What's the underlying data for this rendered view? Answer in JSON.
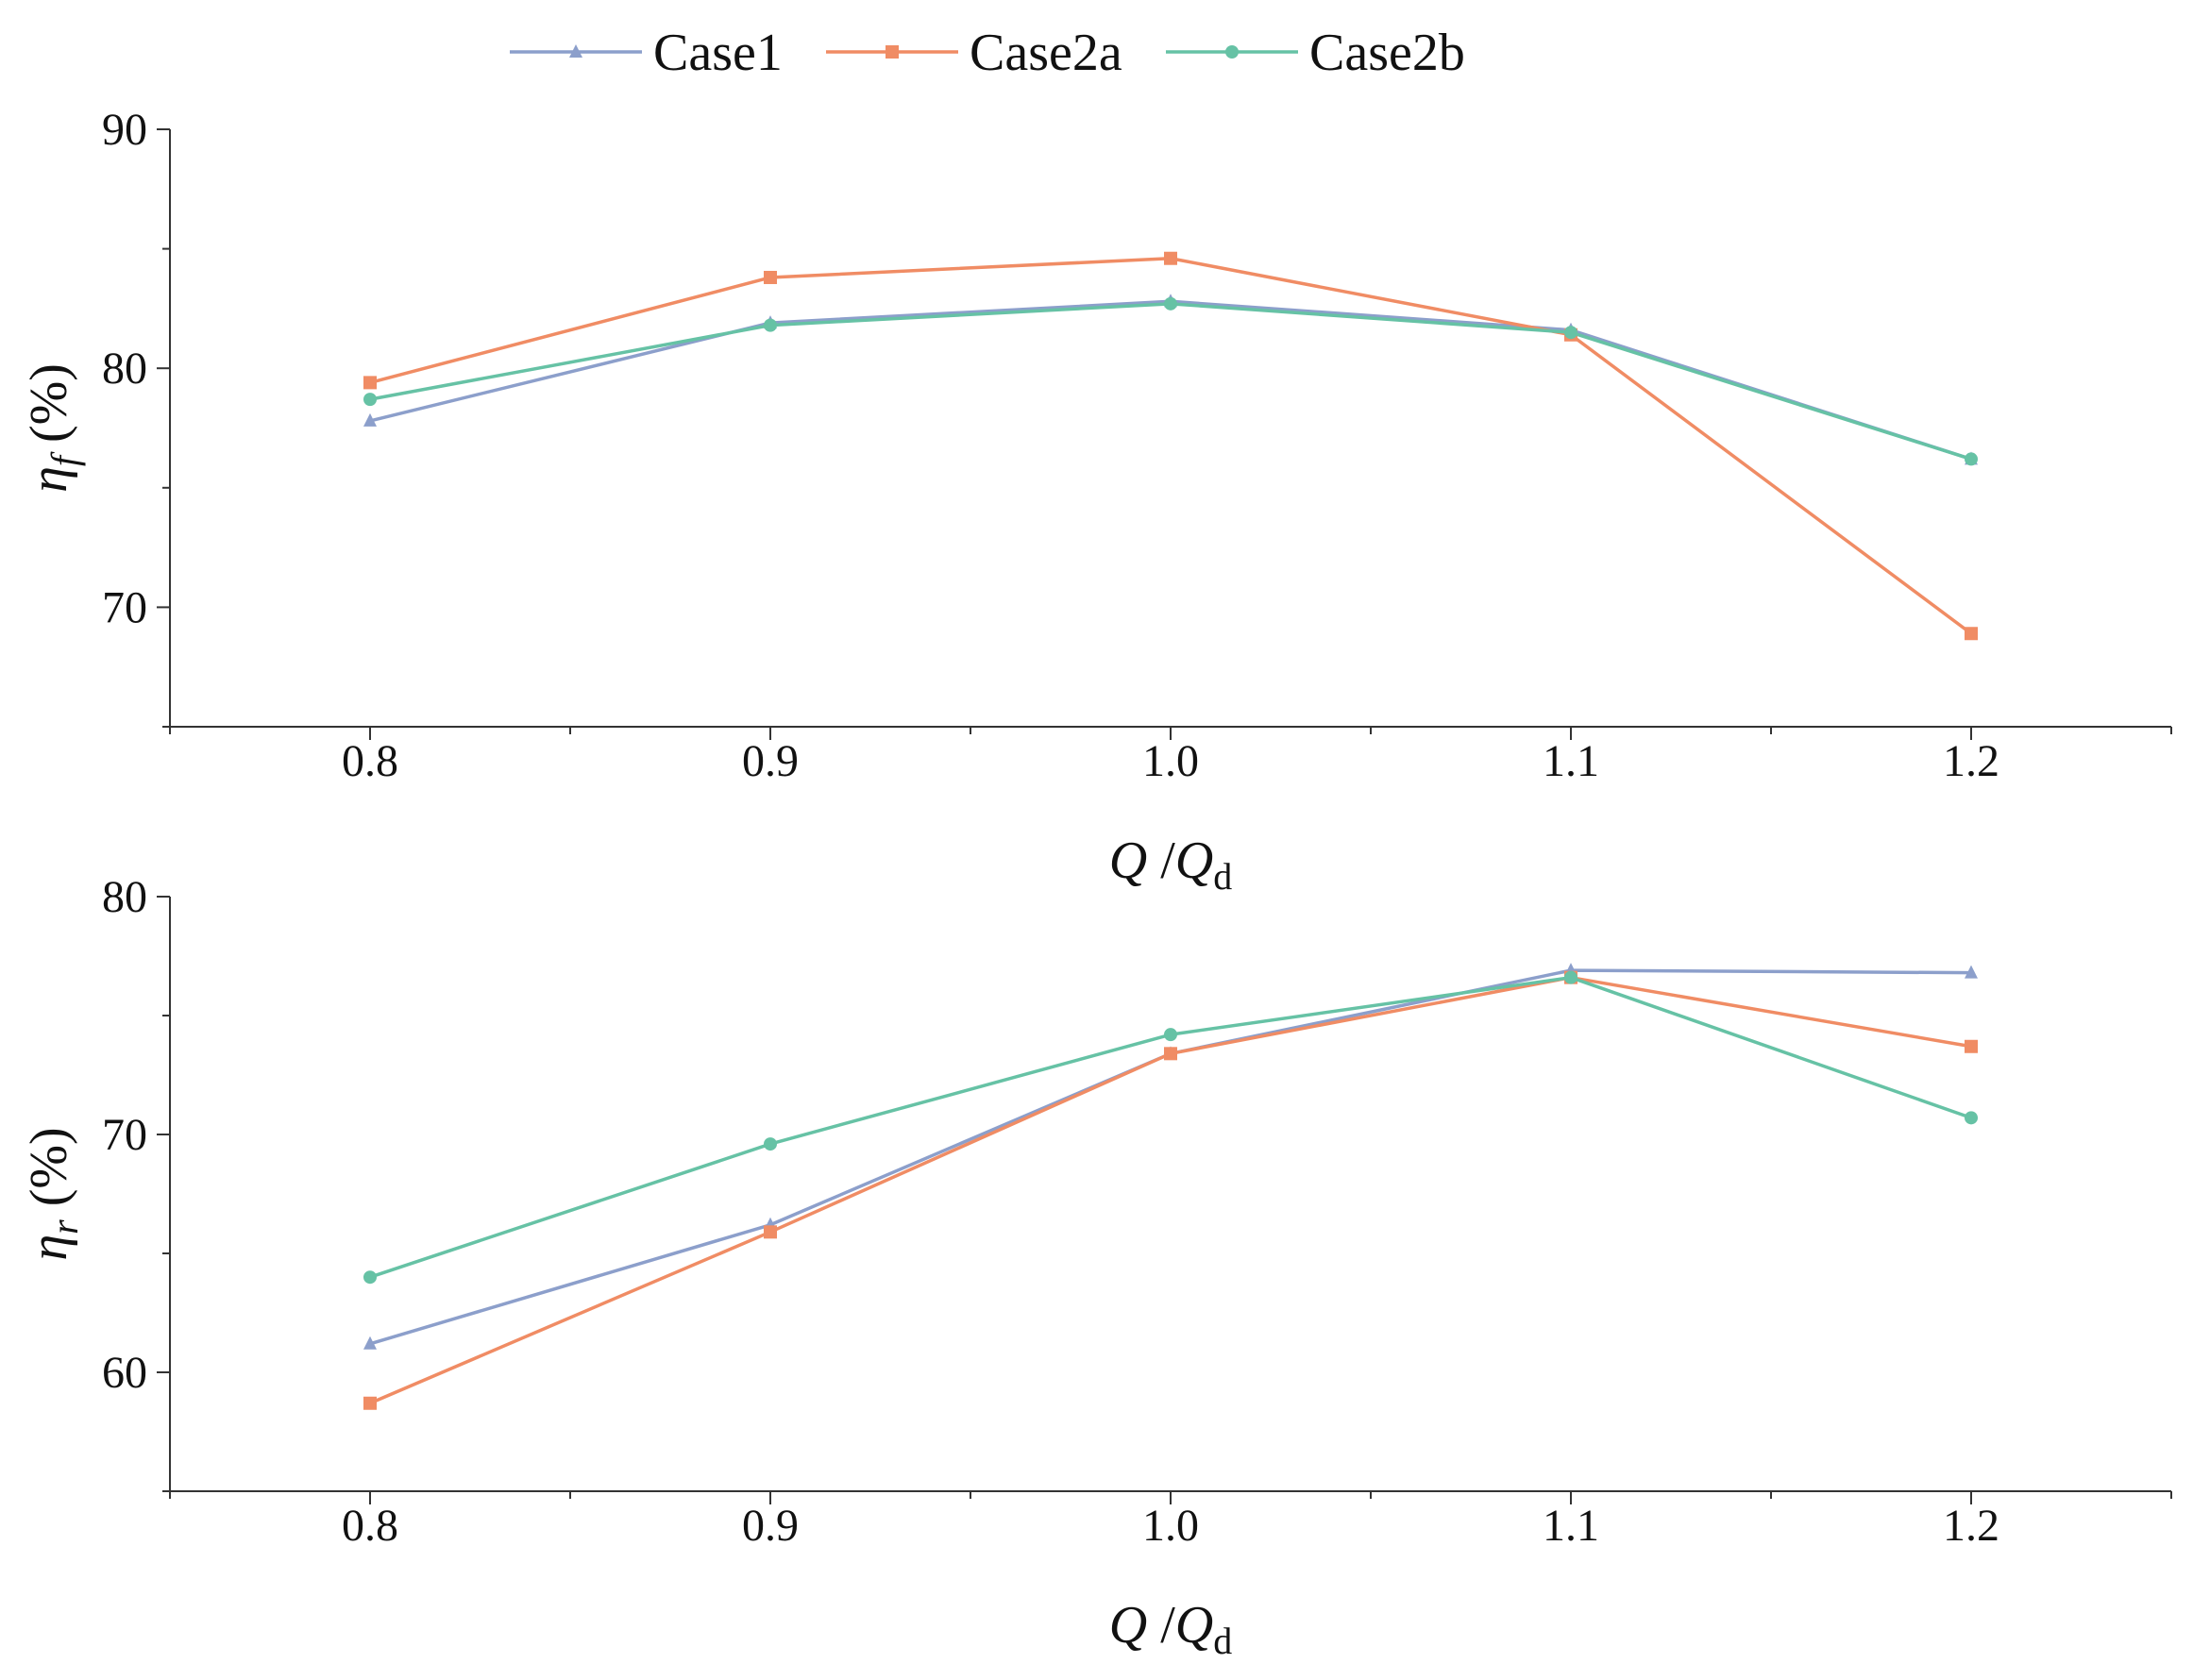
{
  "chart_data": [
    {
      "type": "line",
      "panel": "top",
      "x": [
        0.8,
        0.9,
        1.0,
        1.1,
        1.2
      ],
      "x_tick_labels": [
        "0.8",
        "0.9",
        "1.0",
        "1.1",
        "1.2"
      ],
      "xlim": [
        0.75,
        1.25
      ],
      "ylim": [
        65,
        90
      ],
      "y_ticks": [
        70,
        80,
        90
      ],
      "y_tick_labels": [
        "70",
        "80",
        "90"
      ],
      "xlabel": {
        "main": "Q",
        "sep": " /",
        "main2": "Q",
        "sub": "d"
      },
      "ylabel": {
        "symbol": "η",
        "sub": "f",
        "unit": " (%)"
      },
      "series": [
        {
          "name": "Case1",
          "color": "#8c9fcb",
          "marker": "triangle",
          "values": [
            77.8,
            81.9,
            82.8,
            81.6,
            76.2
          ]
        },
        {
          "name": "Case2a",
          "color": "#f08c64",
          "marker": "square",
          "values": [
            79.4,
            83.8,
            84.6,
            81.4,
            68.9
          ]
        },
        {
          "name": "Case2b",
          "color": "#66c2a5",
          "marker": "circle",
          "values": [
            78.7,
            81.8,
            82.7,
            81.5,
            76.2
          ]
        }
      ]
    },
    {
      "type": "line",
      "panel": "bottom",
      "x": [
        0.8,
        0.9,
        1.0,
        1.1,
        1.2
      ],
      "x_tick_labels": [
        "0.8",
        "0.9",
        "1.0",
        "1.1",
        "1.2"
      ],
      "xlim": [
        0.75,
        1.25
      ],
      "ylim": [
        55,
        80
      ],
      "y_ticks": [
        60,
        70,
        80
      ],
      "y_tick_labels": [
        "60",
        "70",
        "80"
      ],
      "xlabel": {
        "main": "Q",
        "sep": " /",
        "main2": "Q",
        "sub": "d"
      },
      "ylabel": {
        "symbol": "η",
        "sub": "r",
        "unit": " (%)"
      },
      "series": [
        {
          "name": "Case1",
          "color": "#8c9fcb",
          "marker": "triangle",
          "values": [
            61.2,
            66.2,
            73.4,
            76.9,
            76.8
          ]
        },
        {
          "name": "Case2a",
          "color": "#f08c64",
          "marker": "square",
          "values": [
            58.7,
            65.9,
            73.4,
            76.6,
            73.7
          ]
        },
        {
          "name": "Case2b",
          "color": "#66c2a5",
          "marker": "circle",
          "values": [
            64.0,
            69.6,
            74.2,
            76.6,
            70.7
          ]
        }
      ]
    }
  ],
  "legend": {
    "position": "top-center",
    "items": [
      {
        "name": "Case1",
        "color": "#8c9fcb",
        "marker": "triangle"
      },
      {
        "name": "Case2a",
        "color": "#f08c64",
        "marker": "square"
      },
      {
        "name": "Case2b",
        "color": "#66c2a5",
        "marker": "circle"
      }
    ]
  }
}
